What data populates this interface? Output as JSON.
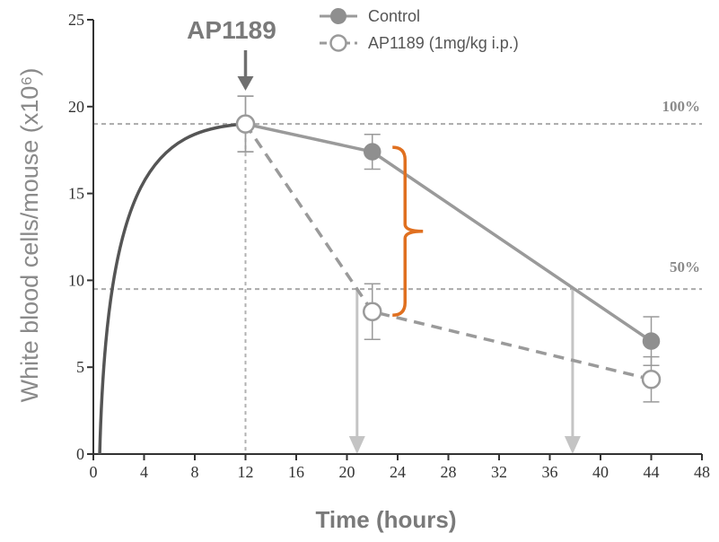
{
  "chart_data": {
    "type": "line",
    "title": "",
    "xlabel": "Time (hours)",
    "ylabel": "White blood cells/mouse (x10⁶)",
    "xlim": [
      0,
      48
    ],
    "ylim": [
      0,
      25
    ],
    "xticks": [
      0,
      4,
      8,
      12,
      16,
      20,
      24,
      28,
      32,
      36,
      40,
      44,
      48
    ],
    "yticks": [
      0,
      5,
      10,
      15,
      20,
      25
    ],
    "series": [
      {
        "name": "Control",
        "marker": "filled-circle",
        "line": "solid",
        "color": "#9a9a9a",
        "x": [
          12,
          22,
          44
        ],
        "y": [
          19,
          17.4,
          6.5
        ],
        "error": [
          1.6,
          1.0,
          1.4
        ]
      },
      {
        "name": "AP1189 (1mg/kg i.p.)",
        "marker": "open-circle",
        "line": "dashed",
        "color": "#9a9a9a",
        "x": [
          12,
          22,
          44
        ],
        "y": [
          19,
          8.2,
          4.3
        ],
        "error": [
          1.6,
          1.6,
          1.3
        ]
      }
    ],
    "rise_curve": {
      "x": [
        0.5,
        12
      ],
      "y": [
        0,
        19
      ],
      "color": "#555555"
    },
    "reference_lines": [
      {
        "y": 19,
        "label": "100%"
      },
      {
        "y": 9.5,
        "label": "50%"
      }
    ],
    "vertical_markers": [
      {
        "x": 12,
        "style": "dashed"
      },
      {
        "x": 20.8,
        "style": "arrow-down"
      },
      {
        "x": 37.8,
        "style": "arrow-down"
      }
    ],
    "annotation": {
      "text": "AP1189",
      "x": 12
    },
    "brace": {
      "x": 26,
      "y_from": 17.4,
      "y_to": 8.2,
      "color": "#e07020"
    },
    "legend": {
      "position": "top"
    },
    "grid": false
  }
}
